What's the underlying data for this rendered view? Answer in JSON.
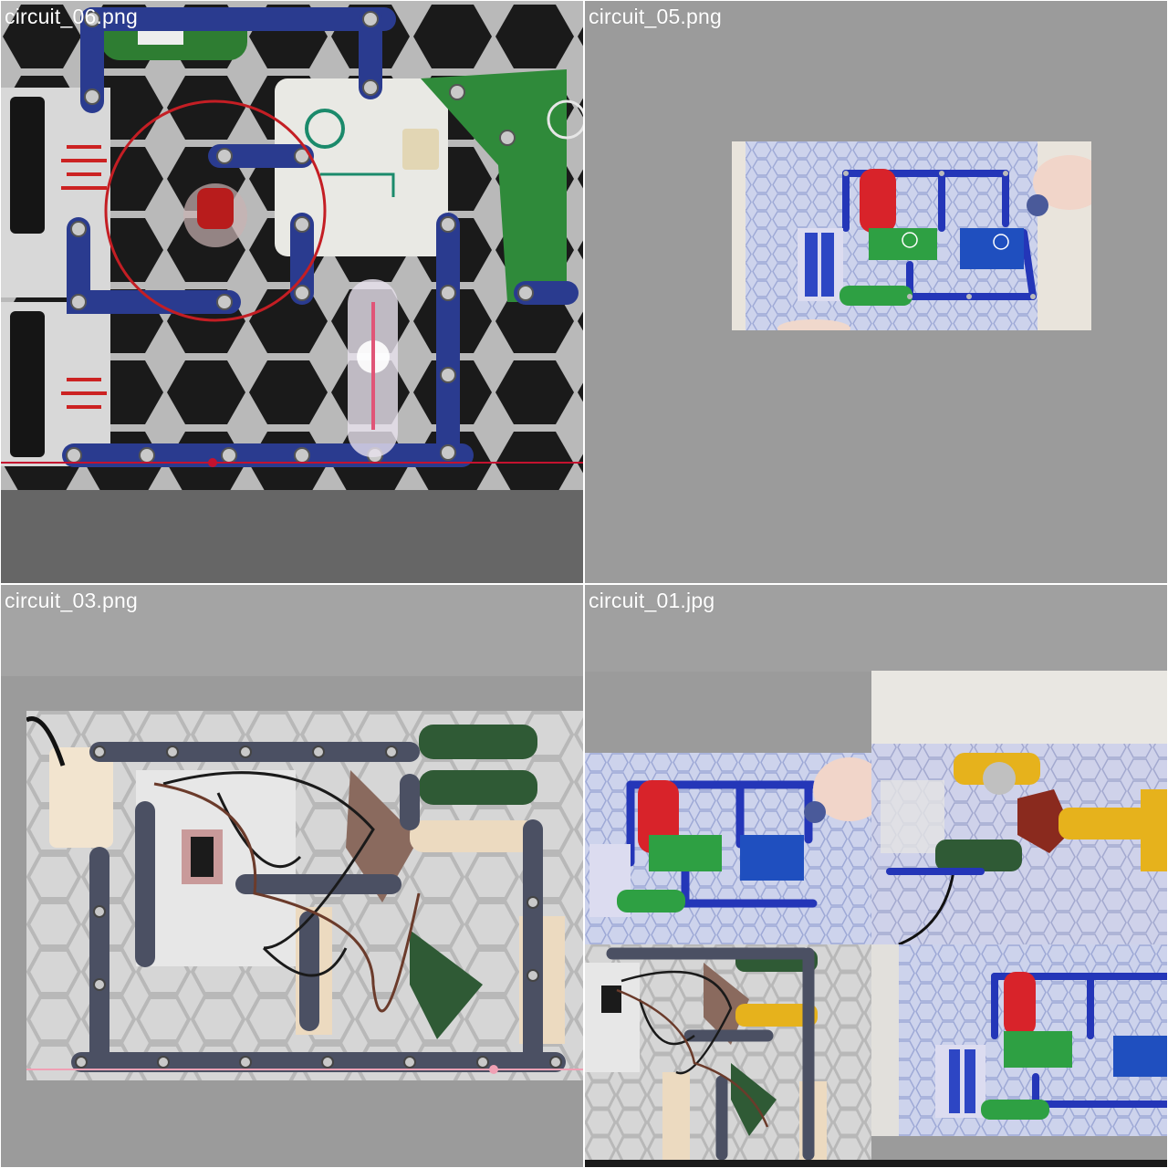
{
  "gallery": {
    "background_color": "#9b9b9b",
    "caption_color": "#ffffff",
    "tiles": [
      {
        "filename": "circuit_06.png"
      },
      {
        "filename": "circuit_05.png"
      },
      {
        "filename": "circuit_03.png"
      },
      {
        "filename": "circuit_01.jpg"
      }
    ]
  }
}
